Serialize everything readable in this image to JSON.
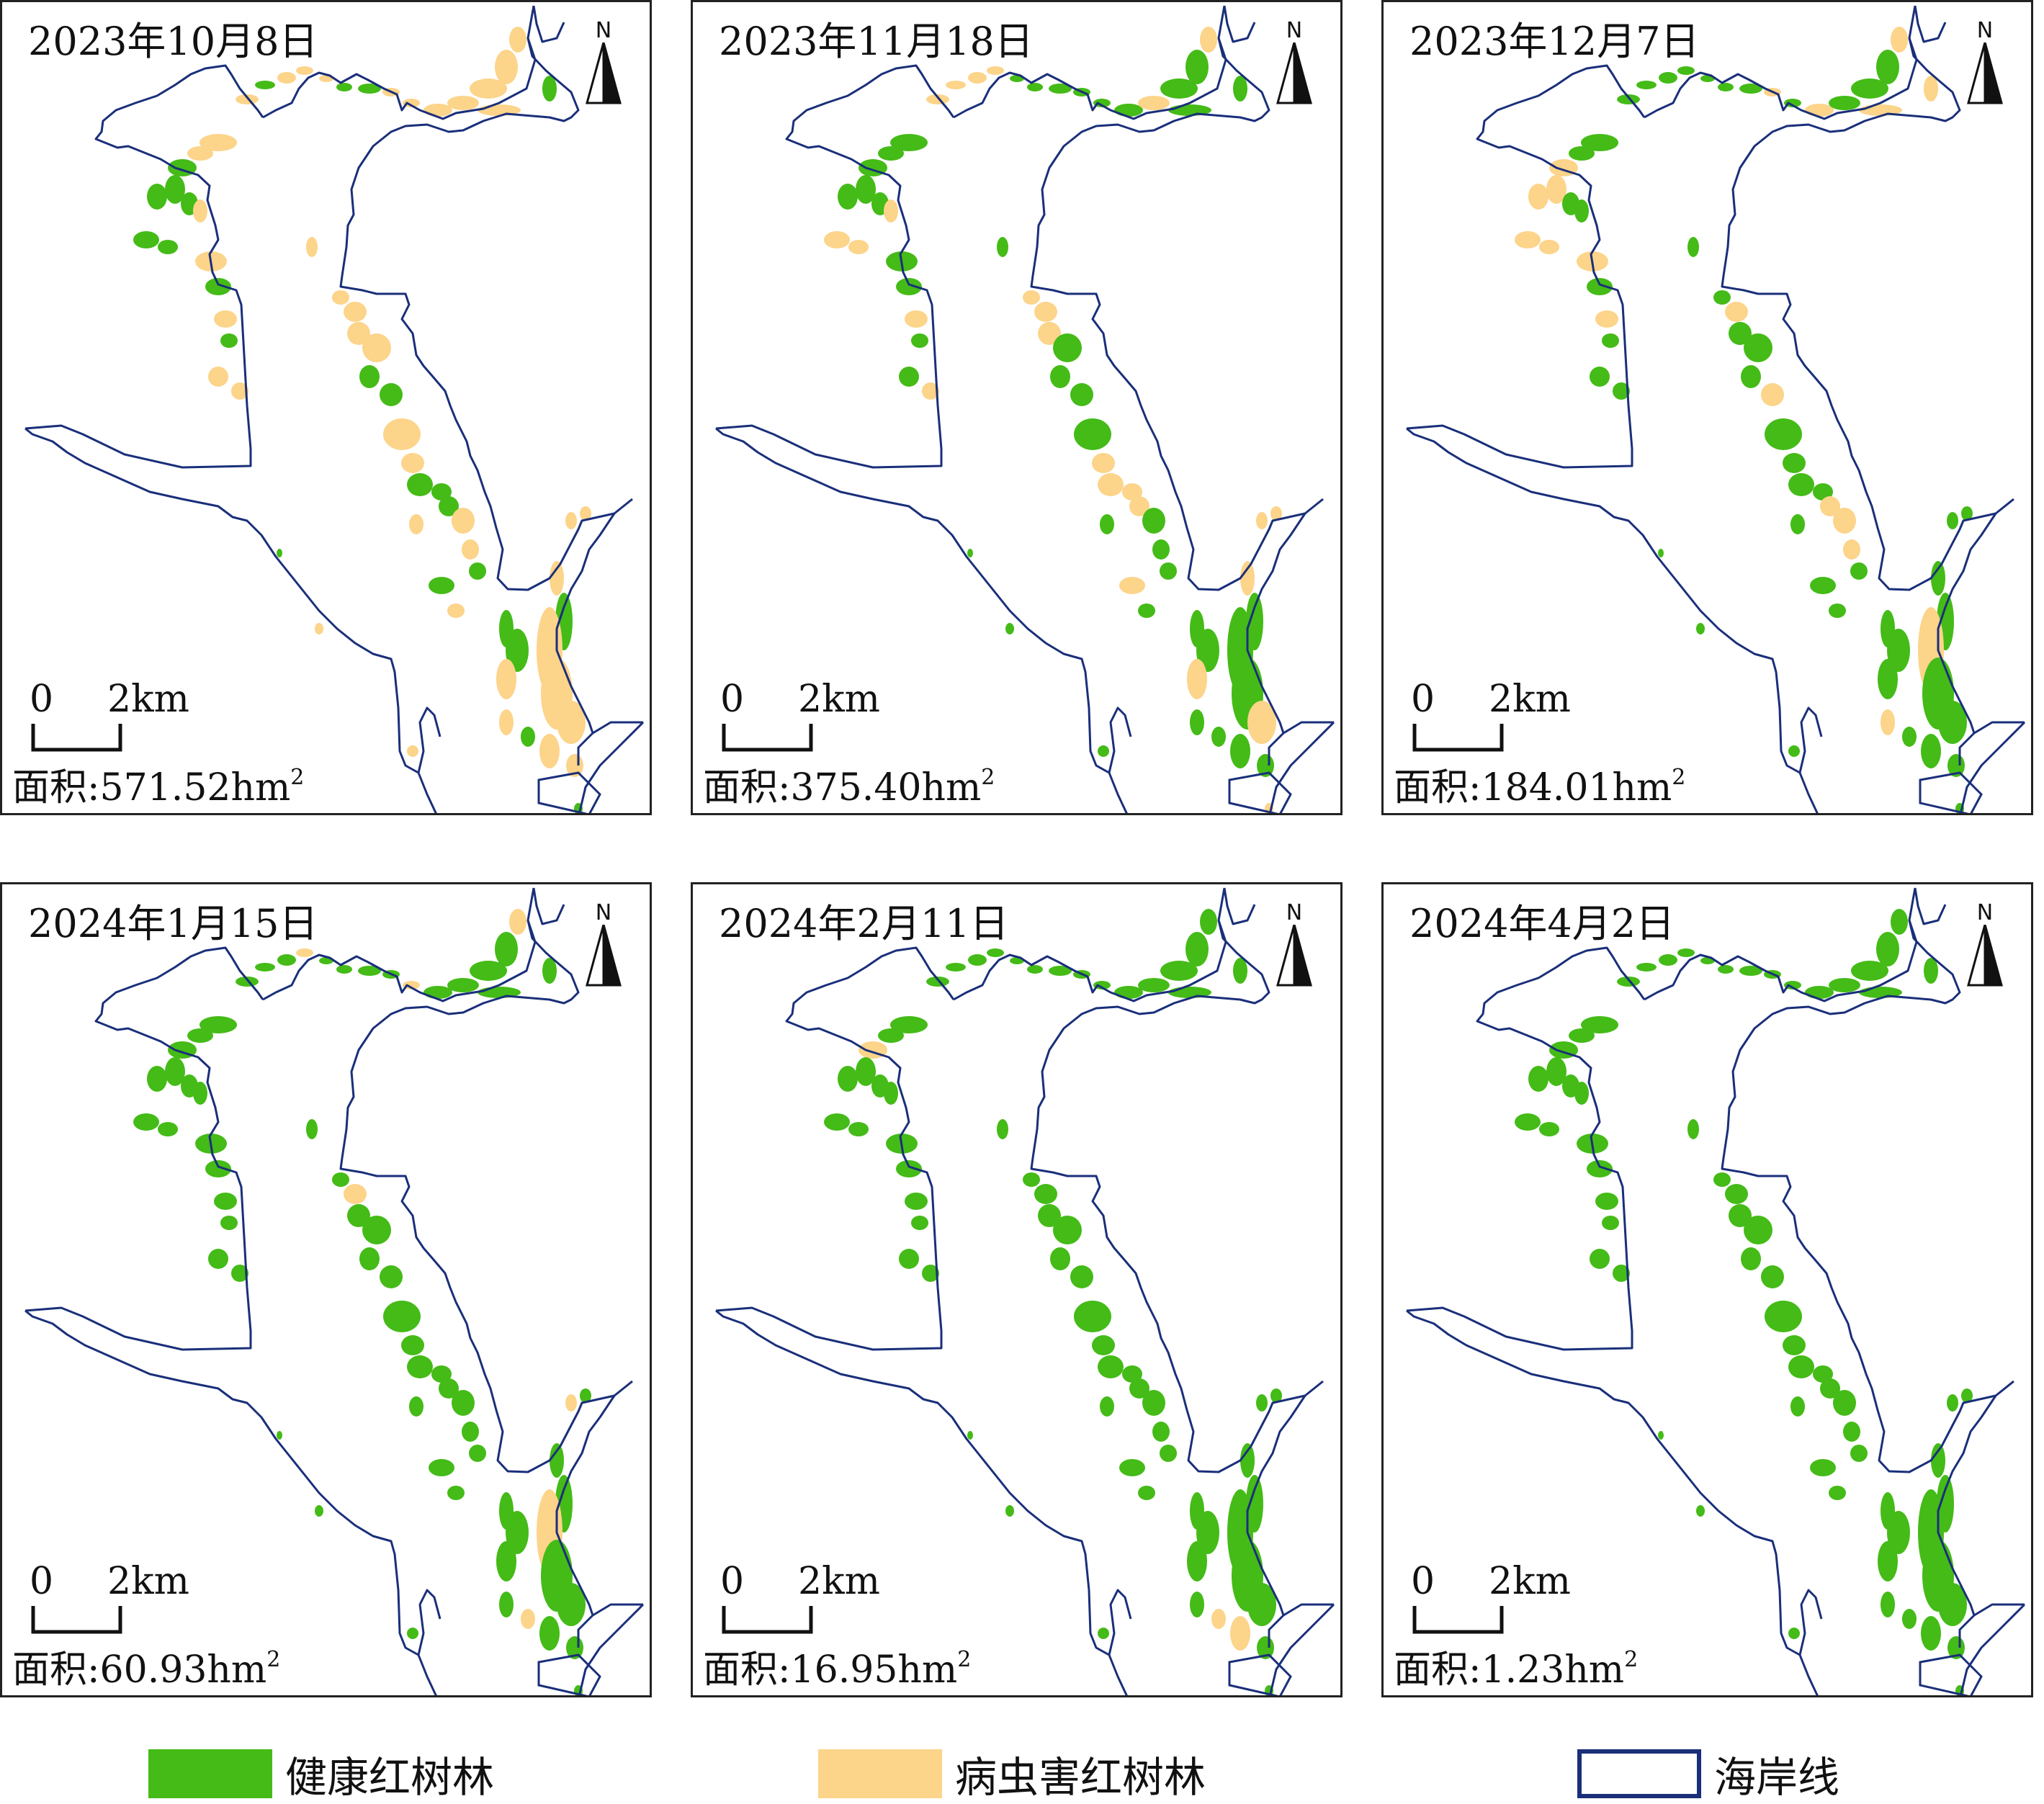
{
  "colors": {
    "healthy": "#44bb17",
    "diseased": "#fcd48a",
    "coastline": "#1a2f7a"
  },
  "north_label": "N",
  "scale": {
    "zero": "0",
    "distance": "2km"
  },
  "area_prefix": "面积:",
  "area_suffix": "hm",
  "area_superscript": "2",
  "panels": [
    {
      "date": "2023年10月8日",
      "area": "571.52",
      "diseased_level": 0.62
    },
    {
      "date": "2023年11月18日",
      "area": "375.40",
      "diseased_level": 0.45
    },
    {
      "date": "2023年12月7日",
      "area": "184.01",
      "diseased_level": 0.26
    },
    {
      "date": "2024年1月15日",
      "area": "60.93",
      "diseased_level": 0.1
    },
    {
      "date": "2024年2月11日",
      "area": "16.95",
      "diseased_level": 0.04
    },
    {
      "date": "2024年4月2日",
      "area": "1.23",
      "diseased_level": 0.0
    }
  ],
  "legend": [
    {
      "label": "健康红树林",
      "type": "healthy"
    },
    {
      "label": "病虫害红树林",
      "type": "diseased"
    },
    {
      "label": "海岸线",
      "type": "coastline"
    }
  ]
}
